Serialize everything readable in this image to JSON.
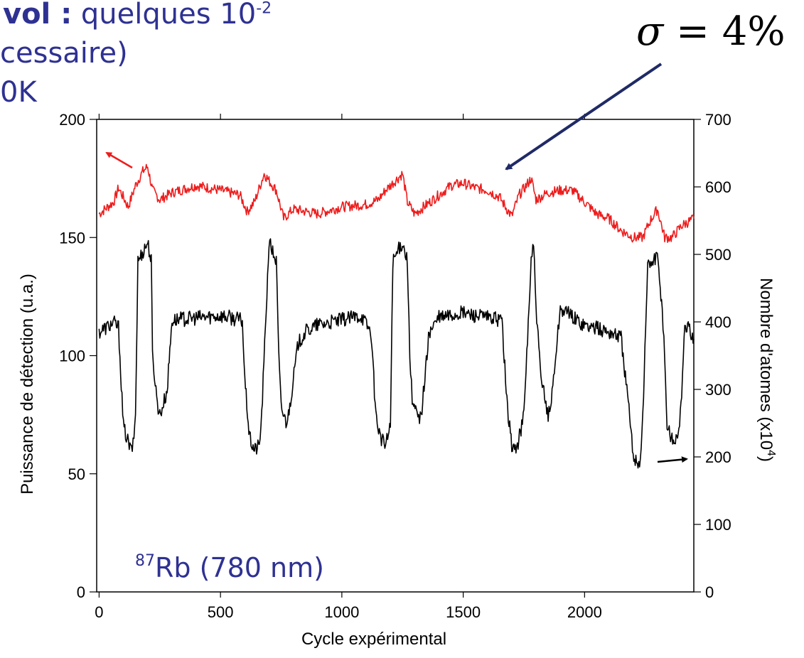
{
  "slide": {
    "line1_bold": "vol :",
    "line1_text": "quelques 10",
    "line1_sup": "-2",
    "line2": "cessaire)",
    "line3": "0K"
  },
  "sigma": {
    "symbol": "σ",
    "rest": "= 4%"
  },
  "colors": {
    "red": "#ee1c1c",
    "black": "#000000",
    "annotation": "#2e3192",
    "arrow_navy": "#1f2a66"
  },
  "chart_data": {
    "type": "line",
    "title": "",
    "xlabel": "Cycle expérimental",
    "ylabel_left": "Puissance de détection (u.a.)",
    "ylabel_right": "Nombre d'atomes (x10",
    "ylabel_right_sup": "4",
    "ylabel_right_close": ")",
    "xlim": [
      -10,
      2450
    ],
    "ylim_left": [
      0,
      200
    ],
    "ylim_right": [
      0,
      700
    ],
    "x_ticks": [
      0,
      500,
      1000,
      1500,
      2000
    ],
    "x_tick_labels": [
      "0",
      "500",
      "1000",
      "1500",
      "2000"
    ],
    "left_ticks": [
      0,
      50,
      100,
      150,
      200
    ],
    "left_tick_labels": [
      "0",
      "50",
      "100",
      "150",
      "200"
    ],
    "right_ticks": [
      0,
      100,
      200,
      300,
      400,
      500,
      600,
      700
    ],
    "right_tick_labels": [
      "0",
      "100",
      "200",
      "300",
      "400",
      "500",
      "600",
      "700"
    ],
    "annotation_label": "Rb (780 nm)",
    "annotation_sup": "87",
    "series": [
      {
        "color": "#ee1c1c",
        "axis": "left",
        "x": [
          0,
          60,
          80,
          120,
          150,
          180,
          200,
          220,
          250,
          300,
          400,
          500,
          580,
          610,
          640,
          680,
          700,
          730,
          760,
          800,
          900,
          1000,
          1100,
          1150,
          1180,
          1220,
          1250,
          1270,
          1300,
          1350,
          1400,
          1450,
          1500,
          1550,
          1600,
          1650,
          1680,
          1700,
          1730,
          1760,
          1780,
          1800,
          1850,
          1900,
          1950,
          2000,
          2050,
          2100,
          2150,
          2200,
          2240,
          2270,
          2300,
          2330,
          2360,
          2400,
          2450
        ],
        "y": [
          160,
          165,
          171,
          163,
          172,
          178,
          180,
          170,
          166,
          169,
          172,
          170,
          168,
          161,
          165,
          177,
          174,
          170,
          158,
          162,
          160,
          163,
          164,
          166,
          170,
          174,
          177,
          165,
          160,
          164,
          168,
          172,
          173,
          171,
          170,
          167,
          162,
          159,
          168,
          172,
          175,
          166,
          169,
          170,
          170,
          165,
          160,
          158,
          153,
          150,
          150,
          157,
          162,
          150,
          150,
          155,
          158
        ]
      },
      {
        "color": "#000000",
        "axis": "left",
        "x": [
          0,
          60,
          80,
          100,
          130,
          140,
          150,
          160,
          200,
          215,
          220,
          240,
          250,
          260,
          280,
          300,
          400,
          500,
          590,
          600,
          620,
          640,
          660,
          670,
          700,
          730,
          740,
          750,
          770,
          780,
          800,
          820,
          850,
          900,
          1000,
          1080,
          1120,
          1140,
          1160,
          1180,
          1200,
          1210,
          1250,
          1270,
          1280,
          1290,
          1310,
          1320,
          1330,
          1360,
          1400,
          1500,
          1600,
          1660,
          1680,
          1700,
          1720,
          1750,
          1780,
          1790,
          1800,
          1820,
          1850,
          1860,
          1900,
          2000,
          2100,
          2150,
          2180,
          2200,
          2220,
          2230,
          2240,
          2260,
          2300,
          2320,
          2330,
          2340,
          2360,
          2380,
          2400,
          2410,
          2430,
          2450
        ],
        "y": [
          110,
          114,
          112,
          70,
          60,
          62,
          75,
          140,
          148,
          140,
          100,
          80,
          75,
          78,
          85,
          115,
          116,
          117,
          115,
          90,
          65,
          60,
          62,
          75,
          148,
          140,
          100,
          78,
          72,
          75,
          90,
          105,
          110,
          113,
          115,
          117,
          110,
          75,
          65,
          62,
          70,
          140,
          148,
          140,
          100,
          80,
          75,
          72,
          78,
          110,
          116,
          118,
          116,
          115,
          80,
          62,
          60,
          75,
          140,
          147,
          120,
          90,
          75,
          78,
          120,
          113,
          110,
          108,
          80,
          58,
          55,
          56,
          75,
          138,
          142,
          120,
          100,
          70,
          65,
          64,
          80,
          110,
          112,
          107
        ]
      }
    ]
  }
}
